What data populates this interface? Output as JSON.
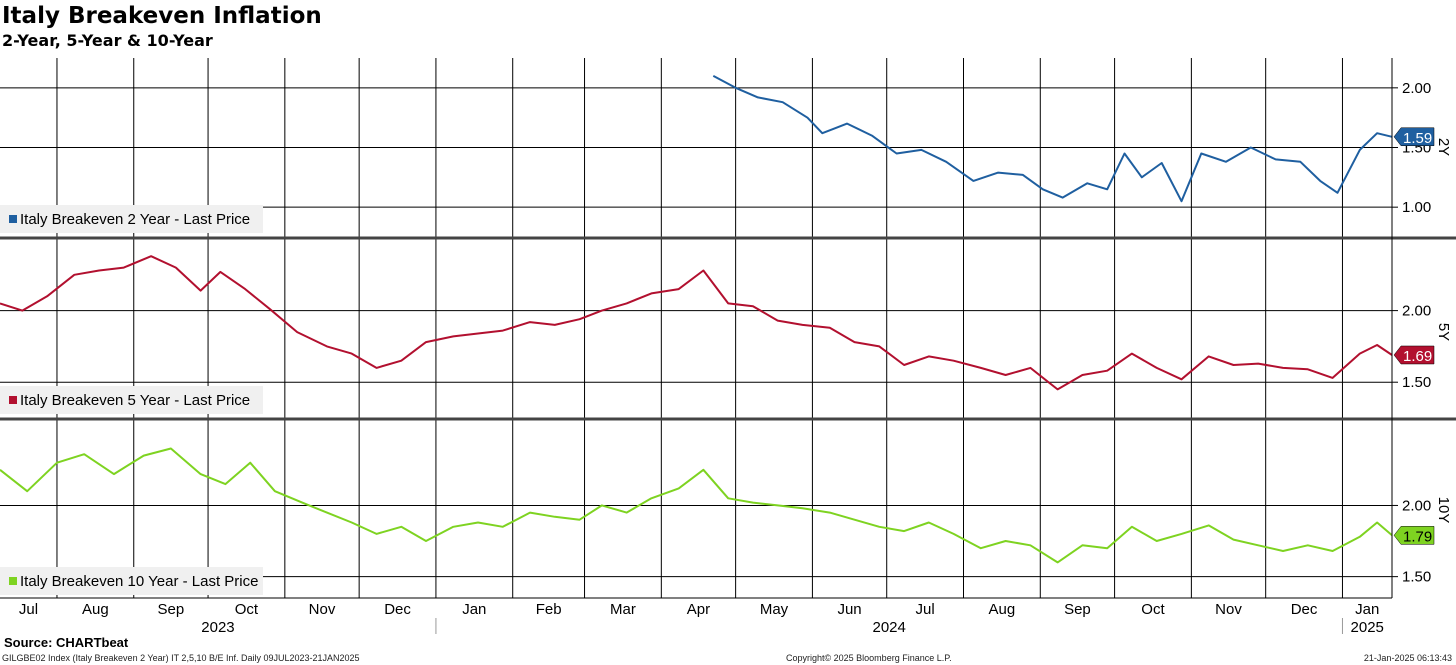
{
  "title": "Italy Breakeven Inflation",
  "subtitle": "2-Year, 5-Year & 10-Year",
  "source": "Source: CHARTbeat",
  "footer_left": "GILGBE02 Index (Italy Breakeven 2 Year) IT 2,5,10 B/E Inf.  Daily 09JUL2023-21JAN2025",
  "footer_center": "Copyright© 2025 Bloomberg Finance L.P.",
  "footer_right": "21-Jan-2025 06:13:43",
  "chart_data": {
    "type": "line",
    "x_months": [
      "Jul",
      "Aug",
      "Sep",
      "Oct",
      "Nov",
      "Dec",
      "Jan",
      "Feb",
      "Mar",
      "Apr",
      "May",
      "Jun",
      "Jul",
      "Aug",
      "Sep",
      "Oct",
      "Nov",
      "Dec",
      "Jan"
    ],
    "years": [
      "2023",
      "2024",
      "2025"
    ],
    "x_range": [
      "2023-07-09",
      "2025-01-21"
    ],
    "grid": true,
    "legend_placement": "bottom-left of each panel",
    "panels": [
      {
        "axis_label": "2Y",
        "legend": "Italy Breakeven 2 Year - Last Price",
        "color": "#1f5fa0",
        "last_value": "1.59",
        "yticks": [
          "2.00",
          "1.50",
          "1.00"
        ],
        "ylim": [
          0.75,
          2.25
        ],
        "x": [
          "2024-04-22",
          "2024-05-01",
          "2024-05-10",
          "2024-05-20",
          "2024-05-30",
          "2024-06-05",
          "2024-06-15",
          "2024-06-25",
          "2024-07-05",
          "2024-07-15",
          "2024-07-25",
          "2024-08-05",
          "2024-08-15",
          "2024-08-25",
          "2024-09-02",
          "2024-09-10",
          "2024-09-20",
          "2024-09-28",
          "2024-10-05",
          "2024-10-12",
          "2024-10-20",
          "2024-10-28",
          "2024-11-05",
          "2024-11-15",
          "2024-11-25",
          "2024-12-05",
          "2024-12-15",
          "2024-12-23",
          "2024-12-30",
          "2025-01-08",
          "2025-01-15",
          "2025-01-21"
        ],
        "values": [
          2.1,
          2.0,
          1.92,
          1.88,
          1.75,
          1.62,
          1.7,
          1.6,
          1.45,
          1.48,
          1.38,
          1.22,
          1.29,
          1.27,
          1.15,
          1.08,
          1.2,
          1.15,
          1.45,
          1.25,
          1.37,
          1.05,
          1.45,
          1.38,
          1.5,
          1.4,
          1.38,
          1.22,
          1.12,
          1.48,
          1.62,
          1.59
        ]
      },
      {
        "axis_label": "5Y",
        "legend": "Italy Breakeven 5 Year - Last Price",
        "color": "#b2102f",
        "last_value": "1.69",
        "yticks": [
          "2.00",
          "1.50"
        ],
        "ylim": [
          1.25,
          2.5
        ],
        "x": [
          "2023-07-09",
          "2023-07-18",
          "2023-07-28",
          "2023-08-08",
          "2023-08-18",
          "2023-08-28",
          "2023-09-08",
          "2023-09-18",
          "2023-09-28",
          "2023-10-06",
          "2023-10-16",
          "2023-10-26",
          "2023-11-06",
          "2023-11-18",
          "2023-11-28",
          "2023-12-08",
          "2023-12-18",
          "2023-12-28",
          "2024-01-08",
          "2024-01-18",
          "2024-01-28",
          "2024-02-08",
          "2024-02-18",
          "2024-02-28",
          "2024-03-08",
          "2024-03-18",
          "2024-03-28",
          "2024-04-08",
          "2024-04-18",
          "2024-04-28",
          "2024-05-08",
          "2024-05-18",
          "2024-05-28",
          "2024-06-08",
          "2024-06-18",
          "2024-06-28",
          "2024-07-08",
          "2024-07-18",
          "2024-07-28",
          "2024-08-08",
          "2024-08-18",
          "2024-08-28",
          "2024-09-08",
          "2024-09-18",
          "2024-09-28",
          "2024-10-08",
          "2024-10-18",
          "2024-10-28",
          "2024-11-08",
          "2024-11-18",
          "2024-11-28",
          "2024-12-08",
          "2024-12-18",
          "2024-12-28",
          "2025-01-08",
          "2025-01-15",
          "2025-01-21"
        ],
        "values": [
          2.05,
          2.0,
          2.1,
          2.25,
          2.28,
          2.3,
          2.38,
          2.3,
          2.14,
          2.27,
          2.15,
          2.01,
          1.85,
          1.75,
          1.7,
          1.6,
          1.65,
          1.78,
          1.82,
          1.84,
          1.86,
          1.92,
          1.9,
          1.94,
          2.0,
          2.05,
          2.12,
          2.15,
          2.28,
          2.05,
          2.03,
          1.93,
          1.9,
          1.88,
          1.78,
          1.75,
          1.62,
          1.68,
          1.65,
          1.6,
          1.55,
          1.6,
          1.45,
          1.55,
          1.58,
          1.7,
          1.6,
          1.52,
          1.68,
          1.62,
          1.63,
          1.6,
          1.59,
          1.53,
          1.7,
          1.76,
          1.69
        ]
      },
      {
        "axis_label": "10Y",
        "legend": "Italy Breakeven 10 Year - Last Price",
        "color": "#7ed321",
        "last_value": "1.79",
        "yticks": [
          "2.00",
          "1.50"
        ],
        "ylim": [
          1.35,
          2.6
        ],
        "x": [
          "2023-07-09",
          "2023-07-20",
          "2023-08-01",
          "2023-08-12",
          "2023-08-24",
          "2023-09-05",
          "2023-09-16",
          "2023-09-28",
          "2023-10-08",
          "2023-10-18",
          "2023-10-28",
          "2023-11-08",
          "2023-11-18",
          "2023-11-28",
          "2023-12-08",
          "2023-12-18",
          "2023-12-28",
          "2024-01-08",
          "2024-01-18",
          "2024-01-28",
          "2024-02-08",
          "2024-02-18",
          "2024-02-28",
          "2024-03-08",
          "2024-03-18",
          "2024-03-28",
          "2024-04-08",
          "2024-04-18",
          "2024-04-28",
          "2024-05-08",
          "2024-05-18",
          "2024-05-28",
          "2024-06-08",
          "2024-06-18",
          "2024-06-28",
          "2024-07-08",
          "2024-07-18",
          "2024-07-28",
          "2024-08-08",
          "2024-08-18",
          "2024-08-28",
          "2024-09-08",
          "2024-09-18",
          "2024-09-28",
          "2024-10-08",
          "2024-10-18",
          "2024-10-28",
          "2024-11-08",
          "2024-11-18",
          "2024-11-28",
          "2024-12-08",
          "2024-12-18",
          "2024-12-28",
          "2025-01-08",
          "2025-01-15",
          "2025-01-21"
        ],
        "values": [
          2.25,
          2.1,
          2.3,
          2.36,
          2.22,
          2.35,
          2.4,
          2.22,
          2.15,
          2.3,
          2.1,
          2.02,
          1.95,
          1.88,
          1.8,
          1.85,
          1.75,
          1.85,
          1.88,
          1.85,
          1.95,
          1.92,
          1.9,
          2.0,
          1.95,
          2.05,
          2.12,
          2.25,
          2.05,
          2.02,
          2.0,
          1.98,
          1.95,
          1.9,
          1.85,
          1.82,
          1.88,
          1.8,
          1.7,
          1.75,
          1.72,
          1.6,
          1.72,
          1.7,
          1.85,
          1.75,
          1.8,
          1.86,
          1.76,
          1.72,
          1.68,
          1.72,
          1.68,
          1.78,
          1.88,
          1.79
        ]
      }
    ]
  }
}
